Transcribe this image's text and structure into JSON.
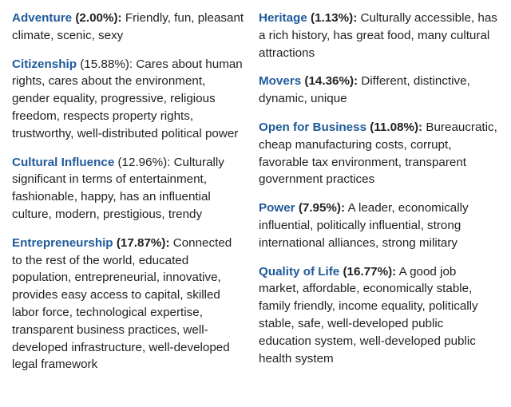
{
  "left_column": [
    {
      "term": "Adventure",
      "percent": "(2.00%):",
      "percent_bold": true,
      "description": "Friendly, fun, pleasant climate, scenic, sexy"
    },
    {
      "term": "Citizenship",
      "percent": "(15.88%):",
      "percent_bold": false,
      "description": "Cares about human rights, cares about the environment, gender equality, progressive, religious freedom, respects property rights, trustworthy, well-distributed political power"
    },
    {
      "term": "Cultural Influence",
      "percent": "(12.96%):",
      "percent_bold": false,
      "description": "Culturally significant in terms of entertainment, fashionable, happy, has an influential culture, modern, prestigious, trendy"
    },
    {
      "term": "Entrepreneurship",
      "percent": "(17.87%):",
      "percent_bold": true,
      "description": "Connected to the rest of the world, educated population, entrepreneurial, innovative, provides easy access to capital, skilled labor force, technological expertise, transparent business practices, well-developed infrastructure, well-developed legal framework"
    }
  ],
  "right_column": [
    {
      "term": "Heritage",
      "percent": "(1.13%):",
      "percent_bold": true,
      "description": "Culturally accessible, has a rich history, has great food, many cultural attractions"
    },
    {
      "term": "Movers",
      "percent": "(14.36%):",
      "percent_bold": true,
      "description": "Different, distinctive, dynamic, unique"
    },
    {
      "term": "Open for Business",
      "percent": "(11.08%):",
      "percent_bold": true,
      "description": "Bureaucratic, cheap manufacturing costs, corrupt, favorable tax environment, transparent government practices"
    },
    {
      "term": "Power",
      "percent": "(7.95%):",
      "percent_bold": true,
      "description": "A leader, economically influential, politically influential, strong international alliances, strong military"
    },
    {
      "term": "Quality of Life",
      "percent": "(16.77%):",
      "percent_bold": true,
      "description": "A good job market, affordable, economically stable, family friendly, income equality, politically stable, safe, well-developed public education system, well-developed public health system"
    }
  ],
  "colors": {
    "term": "#1f5a9a",
    "text": "#222222",
    "background": "#ffffff"
  }
}
